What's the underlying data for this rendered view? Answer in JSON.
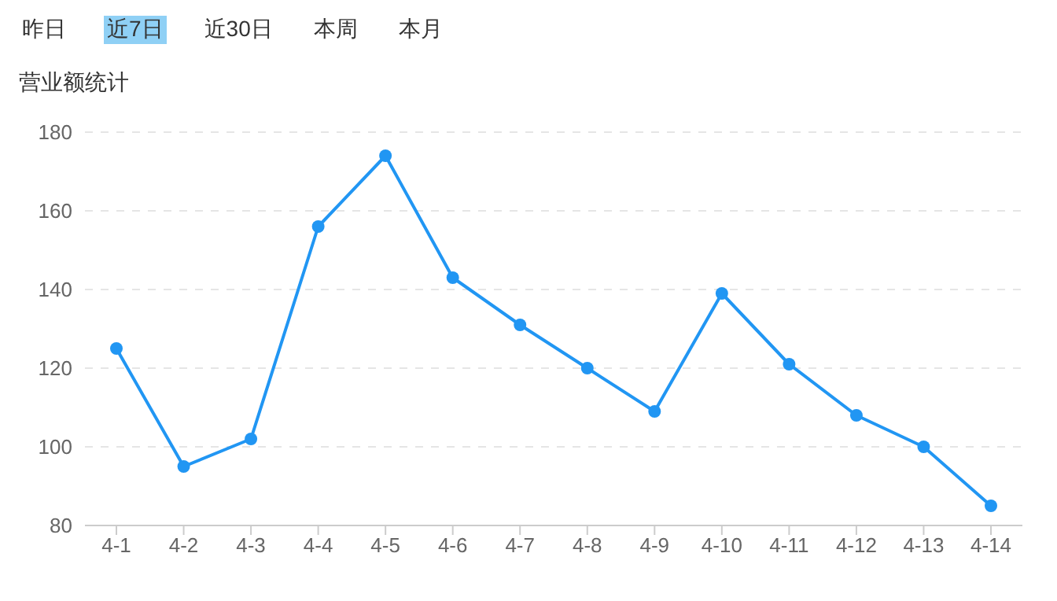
{
  "chart_data": {
    "type": "line",
    "title": "营业额统计",
    "annotations": [
      "昨日",
      "近7日",
      "近30日",
      "本周",
      "本月"
    ],
    "categories": [
      "4-1",
      "4-2",
      "4-3",
      "4-4",
      "4-5",
      "4-6",
      "4-7",
      "4-8",
      "4-9",
      "4-10",
      "4-11",
      "4-12",
      "4-13",
      "4-14"
    ],
    "series": [
      {
        "color": "#2196f3",
        "values": [
          125,
          95,
          102,
          156,
          174,
          143,
          131,
          120,
          109,
          139,
          121,
          108,
          100,
          85
        ]
      }
    ],
    "ylim": [
      80,
      180
    ],
    "yticks": [
      80,
      100,
      120,
      140,
      160,
      180
    ],
    "grid": "y",
    "marker": "circle",
    "line_style": "solid"
  }
}
